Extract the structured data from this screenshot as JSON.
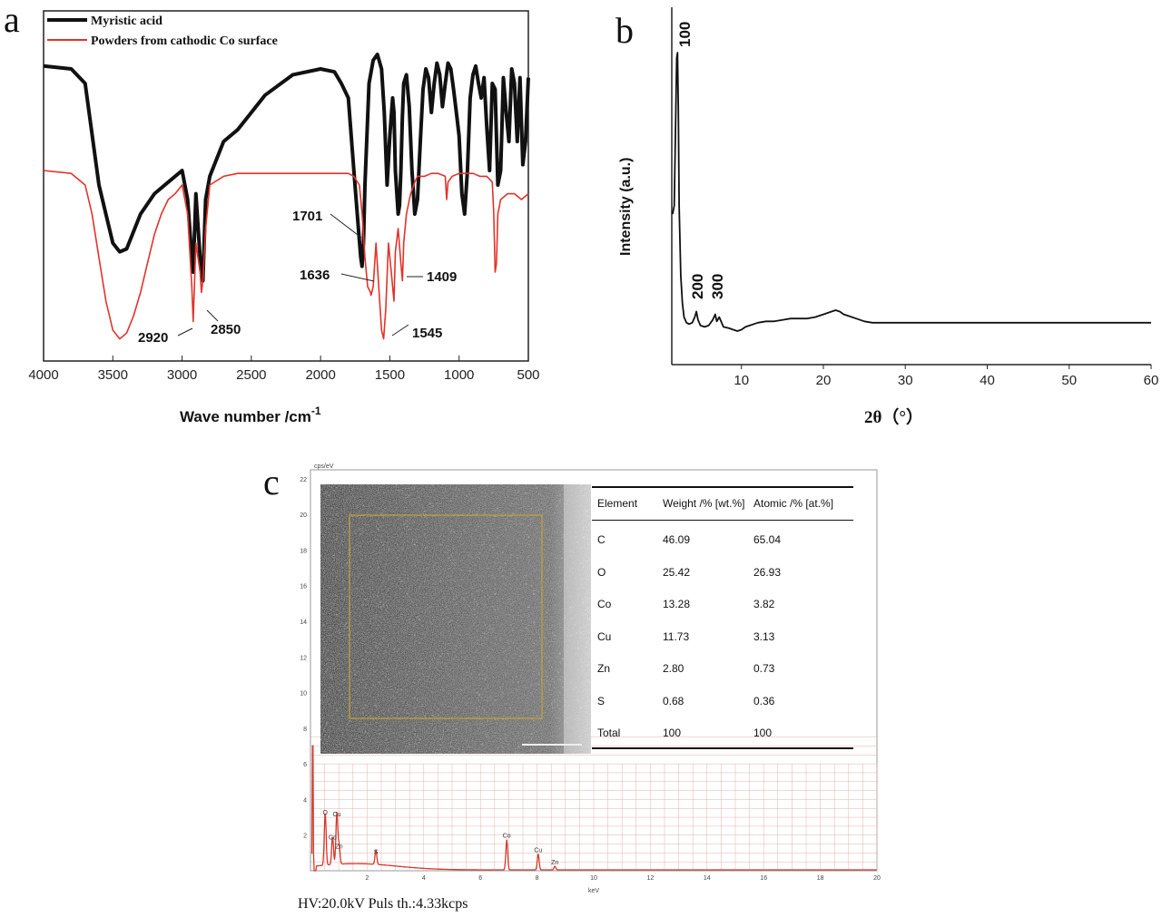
{
  "panels": {
    "a": {
      "letter": "a",
      "chart_data": {
        "type": "line",
        "xlabel": "Wave number /cm",
        "xlabel_superscript": "-1",
        "xlim": [
          4000,
          500
        ],
        "x_ticks": [
          4000,
          3500,
          3000,
          2500,
          2000,
          1500,
          1000,
          500
        ],
        "series": [
          {
            "name": "Myristic acid",
            "color": "#111111",
            "x": [
              4000,
              3800,
              3700,
              3600,
              3500,
              3450,
              3400,
              3300,
              3200,
              3100,
              3000,
              2960,
              2930,
              2920,
              2900,
              2870,
              2850,
              2830,
              2800,
              2700,
              2600,
              2500,
              2400,
              2200,
              2000,
              1900,
              1850,
              1800,
              1760,
              1730,
              1710,
              1701,
              1690,
              1680,
              1650,
              1620,
              1590,
              1560,
              1540,
              1520,
              1500,
              1480,
              1470,
              1460,
              1440,
              1430,
              1420,
              1410,
              1400,
              1380,
              1360,
              1340,
              1320,
              1300,
              1280,
              1260,
              1240,
              1220,
              1200,
              1180,
              1160,
              1140,
              1120,
              1100,
              1080,
              1060,
              1040,
              1020,
              1000,
              980,
              960,
              940,
              920,
              900,
              880,
              860,
              840,
              820,
              800,
              780,
              760,
              740,
              720,
              700,
              680,
              660,
              640,
              620,
              600,
              580,
              560,
              540,
              520,
              500
            ],
            "y": [
              0.96,
              0.95,
              0.9,
              0.55,
              0.35,
              0.32,
              0.33,
              0.45,
              0.52,
              0.56,
              0.6,
              0.5,
              0.3,
              0.25,
              0.52,
              0.3,
              0.22,
              0.5,
              0.58,
              0.7,
              0.74,
              0.8,
              0.86,
              0.93,
              0.95,
              0.94,
              0.9,
              0.85,
              0.6,
              0.42,
              0.3,
              0.27,
              0.35,
              0.55,
              0.9,
              0.98,
              1.0,
              0.95,
              0.8,
              0.55,
              0.72,
              0.85,
              0.8,
              0.6,
              0.45,
              0.48,
              0.6,
              0.78,
              0.9,
              0.93,
              0.82,
              0.6,
              0.45,
              0.5,
              0.7,
              0.88,
              0.95,
              0.92,
              0.8,
              0.9,
              0.97,
              0.93,
              0.82,
              0.9,
              0.97,
              0.95,
              0.88,
              0.8,
              0.72,
              0.52,
              0.45,
              0.6,
              0.85,
              0.93,
              0.96,
              0.9,
              0.85,
              0.92,
              0.75,
              0.6,
              0.9,
              0.88,
              0.55,
              0.6,
              0.92,
              0.8,
              0.7,
              0.95,
              0.9,
              0.7,
              0.92,
              0.62,
              0.7,
              0.92
            ]
          },
          {
            "name": "Powders from cathodic Co surface",
            "color": "#e2332a",
            "x": [
              4000,
              3800,
              3700,
              3650,
              3600,
              3550,
              3500,
              3450,
              3400,
              3350,
              3300,
              3250,
              3200,
              3150,
              3100,
              3050,
              3000,
              2960,
              2930,
              2920,
              2900,
              2870,
              2860,
              2850,
              2830,
              2800,
              2700,
              2600,
              2500,
              2400,
              2200,
              2000,
              1800,
              1760,
              1720,
              1700,
              1680,
              1660,
              1640,
              1636,
              1620,
              1600,
              1580,
              1560,
              1545,
              1530,
              1510,
              1490,
              1470,
              1460,
              1440,
              1420,
              1409,
              1400,
              1380,
              1350,
              1320,
              1300,
              1250,
              1200,
              1150,
              1100,
              1090,
              1080,
              1050,
              1000,
              950,
              900,
              850,
              800,
              760,
              750,
              740,
              730,
              720,
              700,
              650,
              600,
              550,
              500
            ],
            "y": [
              0.6,
              0.59,
              0.55,
              0.45,
              0.3,
              0.15,
              0.05,
              0.02,
              0.04,
              0.1,
              0.18,
              0.28,
              0.38,
              0.45,
              0.5,
              0.52,
              0.55,
              0.45,
              0.2,
              0.08,
              0.35,
              0.25,
              0.18,
              0.22,
              0.4,
              0.55,
              0.58,
              0.59,
              0.59,
              0.59,
              0.59,
              0.59,
              0.59,
              0.58,
              0.55,
              0.45,
              0.3,
              0.2,
              0.18,
              0.17,
              0.2,
              0.35,
              0.2,
              0.05,
              0.02,
              0.12,
              0.35,
              0.25,
              0.15,
              0.32,
              0.4,
              0.28,
              0.22,
              0.35,
              0.45,
              0.52,
              0.56,
              0.58,
              0.58,
              0.59,
              0.59,
              0.58,
              0.5,
              0.56,
              0.58,
              0.59,
              0.59,
              0.59,
              0.58,
              0.58,
              0.56,
              0.45,
              0.25,
              0.28,
              0.45,
              0.5,
              0.52,
              0.52,
              0.5,
              0.52
            ]
          }
        ],
        "annotations": [
          "1701",
          "1636",
          "1409",
          "2920",
          "2850",
          "1545"
        ]
      }
    },
    "b": {
      "letter": "b",
      "chart_data": {
        "type": "line",
        "xlabel": "2θ（°）",
        "ylabel": "Intensity (a.u.)",
        "xlim": [
          1.5,
          60
        ],
        "x_ticks": [
          10,
          20,
          30,
          40,
          50,
          60
        ],
        "series": [
          {
            "name": "",
            "color": "#111111",
            "x": [
              1.6,
              1.8,
              2.0,
              2.1,
              2.2,
              2.3,
              2.4,
              2.6,
              2.8,
              3.0,
              3.3,
              3.6,
              4.0,
              4.3,
              4.5,
              4.7,
              5.0,
              5.5,
              6.0,
              6.5,
              6.8,
              7.0,
              7.3,
              7.8,
              8.5,
              9.0,
              9.5,
              10.0,
              10.5,
              11.0,
              11.5,
              12.0,
              13.0,
              14.0,
              15.0,
              16.0,
              17.0,
              18.0,
              19.0,
              20.0,
              21.0,
              21.5,
              22.0,
              22.5,
              23.0,
              24.0,
              25.0,
              26.0,
              28.0,
              30.0,
              32.0,
              35.0,
              38.0,
              40.0,
              42.0,
              45.0,
              48.0,
              50.0,
              52.0,
              55.0,
              58.0,
              60.0
            ],
            "y": [
              0.42,
              0.45,
              0.8,
              0.98,
              1.0,
              0.8,
              0.45,
              0.2,
              0.1,
              0.05,
              0.03,
              0.025,
              0.03,
              0.05,
              0.07,
              0.04,
              0.02,
              0.015,
              0.02,
              0.04,
              0.06,
              0.035,
              0.05,
              0.015,
              0.01,
              0.005,
              0.0,
              0.005,
              0.015,
              0.02,
              0.025,
              0.03,
              0.035,
              0.035,
              0.04,
              0.045,
              0.045,
              0.045,
              0.05,
              0.06,
              0.07,
              0.075,
              0.07,
              0.06,
              0.055,
              0.045,
              0.035,
              0.03,
              0.03,
              0.03,
              0.03,
              0.03,
              0.03,
              0.03,
              0.03,
              0.03,
              0.03,
              0.03,
              0.03,
              0.03,
              0.03,
              0.03
            ]
          }
        ],
        "peak_labels": [
          "100",
          "200",
          "300"
        ]
      }
    },
    "c": {
      "letter": "c",
      "eds": {
        "y_axis_label": "cps/eV",
        "x_axis_label": "keV",
        "y_ticks": [
          2,
          4,
          6,
          8,
          10,
          12,
          14,
          16,
          18,
          20,
          22
        ],
        "x_ticks": [
          2,
          4,
          6,
          8,
          10,
          12,
          14,
          16,
          18,
          20
        ],
        "peaks": [
          {
            "label": "C",
            "energy": 0.28,
            "height": 0.0
          },
          {
            "label": "O",
            "energy": 0.52,
            "height": 3.0
          },
          {
            "label": "Co",
            "energy": 0.78,
            "height": 1.6
          },
          {
            "label": "Cu",
            "energy": 0.93,
            "height": 2.9
          },
          {
            "label": "Zn",
            "energy": 1.01,
            "height": 1.1
          },
          {
            "label": "S",
            "energy": 2.31,
            "height": 0.8
          },
          {
            "label": "Co",
            "energy": 6.93,
            "height": 1.7
          },
          {
            "label": "Cu",
            "energy": 8.04,
            "height": 0.9
          },
          {
            "label": "Zn",
            "energy": 8.63,
            "height": 0.2
          }
        ],
        "table": {
          "headers": [
            "Element",
            "Weight /% [wt.%]",
            "Atomic /% [at.%]"
          ],
          "rows": [
            [
              "C",
              "46.09",
              "65.04"
            ],
            [
              "O",
              "25.42",
              "26.93"
            ],
            [
              "Co",
              "13.28",
              "3.82"
            ],
            [
              "Cu",
              "11.73",
              "3.13"
            ],
            [
              "Zn",
              "2.80",
              "0.73"
            ],
            [
              "S",
              "0.68",
              "0.36"
            ],
            [
              "Total",
              "100",
              "100"
            ]
          ]
        },
        "caption": "HV:20.0kV Puls th.:4.33kcps"
      }
    }
  }
}
